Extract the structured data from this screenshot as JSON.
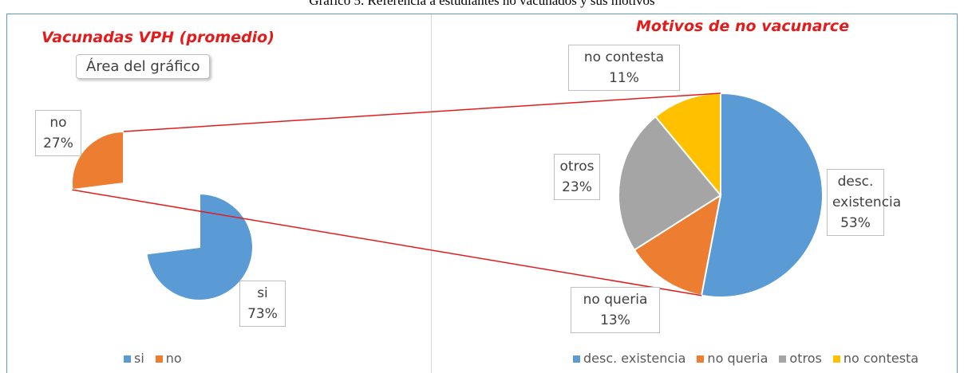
{
  "caption": "Gráfico 5. Referencia a estudiantes no vacunados y sus motivos",
  "tooltip": "Área del gráfico",
  "chart_data": [
    {
      "type": "pie",
      "title": "Vacunadas VPH (promedio)",
      "categories": [
        "si",
        "no"
      ],
      "values": [
        73,
        27
      ],
      "value_labels": [
        "73%",
        "27%"
      ],
      "colors": [
        "#5b9bd5",
        "#ed7d31"
      ]
    },
    {
      "type": "pie",
      "title": "Motivos de no vacunarce",
      "categories": [
        "desc. existencia",
        "no queria",
        "otros",
        "no contesta"
      ],
      "values": [
        53,
        13,
        23,
        11
      ],
      "value_labels": [
        "53%",
        "13%",
        "23%",
        "11%"
      ],
      "colors": [
        "#5b9bd5",
        "#ed7d31",
        "#a5a5a5",
        "#ffc000"
      ]
    }
  ]
}
